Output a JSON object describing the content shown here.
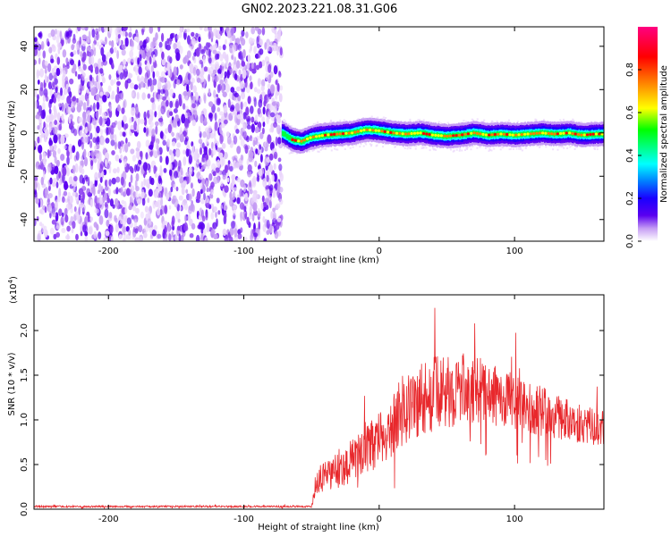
{
  "title": "GN02.2023.221.08.31.G06",
  "colors": {
    "snr_line": "#e8282c",
    "axis": "#000000",
    "background": "#ffffff",
    "colormap": [
      "#ffffff",
      "#e9d4fb",
      "#c59cf4",
      "#8a3cf0",
      "#5a00f0",
      "#1a00ff",
      "#0080ff",
      "#00ffff",
      "#00ff40",
      "#80ff00",
      "#ffff00",
      "#ff8000",
      "#ff0000",
      "#ff0080"
    ]
  },
  "chart_data": [
    {
      "type": "heatmap",
      "title": "",
      "xlabel": "Height of straight line (km)",
      "ylabel": "Frequency (Hz)",
      "xlim": [
        -255,
        166
      ],
      "ylim": [
        -50,
        49
      ],
      "xticks": [
        -200,
        -100,
        0,
        100
      ],
      "yticks": [
        -40,
        -20,
        0,
        20,
        40
      ],
      "xtick_labels": [
        "-200",
        "-100",
        "0",
        "100"
      ],
      "ytick_labels": [
        "-40",
        "-20",
        "0",
        "20",
        "40"
      ],
      "noise_region_end_km": -72,
      "ridge": {
        "x": [
          -72,
          -65,
          -58,
          -50,
          -40,
          -30,
          -20,
          -10,
          0,
          10,
          20,
          30,
          40,
          50,
          60,
          70,
          80,
          90,
          100,
          110,
          120,
          130,
          140,
          150,
          160,
          166
        ],
        "y": [
          0,
          -3,
          -4,
          -2,
          -1,
          -0.5,
          0,
          1.5,
          1,
          0,
          -0.5,
          0,
          -1,
          -1.5,
          -1,
          0,
          -1,
          -0.5,
          -1,
          -0.5,
          0,
          -0.5,
          0,
          -1,
          -0.5,
          -0.5
        ]
      },
      "colorbar": {
        "label": "Normalized spectral amplitude",
        "range": [
          0.0,
          1.0
        ],
        "ticks": [
          0.0,
          0.2,
          0.4,
          0.6,
          0.8
        ],
        "tick_labels": [
          "0.0",
          "0.2",
          "0.4",
          "0.6",
          "0.8"
        ]
      },
      "grid": false
    },
    {
      "type": "line",
      "title": "",
      "xlabel": "Height of straight line (km)",
      "ylabel": "SNR (10 * v/v)",
      "scale_label": "(x10",
      "scale_exponent": "4",
      "scale_suffix": ")",
      "xlim": [
        -255,
        166
      ],
      "ylim": [
        0,
        2.4
      ],
      "xticks": [
        -200,
        -100,
        0,
        100
      ],
      "yticks": [
        0.0,
        0.5,
        1.0,
        1.5,
        2.0
      ],
      "xtick_labels": [
        "-200",
        "-100",
        "0",
        "100"
      ],
      "ytick_labels": [
        "0.0",
        "0.5",
        "1.0",
        "1.5",
        "2.0"
      ],
      "series": [
        {
          "x": [
            -255,
            -200,
            -150,
            -100,
            -60,
            -50,
            -48,
            -45,
            -40,
            -30,
            -20,
            -10,
            0,
            10,
            15,
            20,
            30,
            35,
            40,
            50,
            60,
            70,
            80,
            90,
            100,
            110,
            120,
            130,
            140,
            150,
            160,
            166
          ],
          "values": [
            0.03,
            0.03,
            0.03,
            0.03,
            0.03,
            0.03,
            0.15,
            0.3,
            0.35,
            0.45,
            0.55,
            0.65,
            0.78,
            0.92,
            1.08,
            1.15,
            1.2,
            1.25,
            1.3,
            1.3,
            1.35,
            1.35,
            1.3,
            1.25,
            1.2,
            1.15,
            1.1,
            1.05,
            1.0,
            0.95,
            0.92,
            0.9
          ],
          "spread": [
            0.01,
            0.01,
            0.01,
            0.01,
            0.01,
            0.01,
            0.1,
            0.15,
            0.18,
            0.22,
            0.25,
            0.28,
            0.3,
            0.32,
            0.4,
            0.45,
            0.45,
            0.45,
            0.42,
            0.4,
            0.4,
            0.38,
            0.35,
            0.33,
            0.32,
            0.3,
            0.28,
            0.26,
            0.24,
            0.22,
            0.2,
            0.2
          ]
        }
      ],
      "grid": false
    }
  ]
}
